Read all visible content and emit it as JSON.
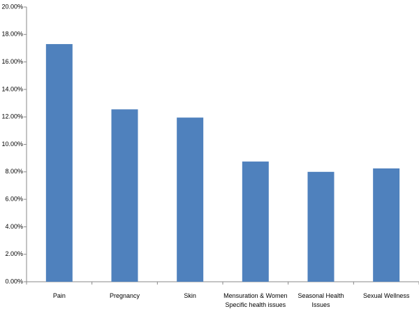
{
  "chart_data": {
    "type": "bar",
    "categories": [
      "Pain",
      "Pregnancy",
      "Skin",
      "Mensuration & Women Specific health issues",
      "Seasonal Health Issues",
      "Sexual Wellness"
    ],
    "values": [
      17.3,
      12.55,
      11.95,
      8.75,
      8.0,
      8.25
    ],
    "color": "#4f81bd",
    "ylim": [
      0,
      20
    ],
    "yticks": [
      {
        "value": 0,
        "label": "0.00%"
      },
      {
        "value": 2,
        "label": "2.00%"
      },
      {
        "value": 4,
        "label": "4.00%"
      },
      {
        "value": 6,
        "label": "6.00%"
      },
      {
        "value": 8,
        "label": "8.00%"
      },
      {
        "value": 10,
        "label": "10.00%"
      },
      {
        "value": 12,
        "label": "12.00%"
      },
      {
        "value": 14,
        "label": "14.00%"
      },
      {
        "value": 16,
        "label": "16.00%"
      },
      {
        "value": 18,
        "label": "18.00%"
      },
      {
        "value": 20,
        "label": "20.00%"
      }
    ],
    "grid": false
  }
}
